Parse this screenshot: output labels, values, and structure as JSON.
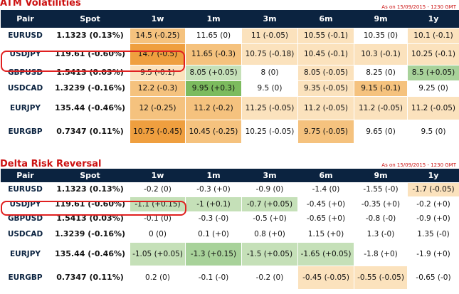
{
  "colors": {
    "header_bg": "#0b2340",
    "title_red": "#cc1111",
    "ring_red": "#e02020",
    "dark_orange": "#ef9f3f",
    "mid_orange": "#f5c27e",
    "light_orange": "#fbe2bd",
    "light_green": "#c5e0b8",
    "mid_green": "#a8d29a",
    "dark_green": "#7cbb5e",
    "white": "#ffffff"
  },
  "atm": {
    "title": "ATM Volatilities",
    "as_of": "As on 15/09/2015 - 1230 GMT",
    "headers": [
      "Pair",
      "Spot",
      "1w",
      "1m",
      "3m",
      "6m",
      "9m",
      "1y"
    ],
    "highlighted_pair": "USDJPY",
    "rows": [
      {
        "pair": "EURUSD",
        "spot": "1.1323 (0.13%)",
        "cells": [
          {
            "text": "14.5 (-0.25)",
            "shade": "mid_orange"
          },
          {
            "text": "11.65 (0)",
            "shade": "white"
          },
          {
            "text": "11 (-0.05)",
            "shade": "light_orange"
          },
          {
            "text": "10.55 (-0.1)",
            "shade": "light_orange"
          },
          {
            "text": "10.35 (0)",
            "shade": "white"
          },
          {
            "text": "10.1 (-0.1)",
            "shade": "light_orange"
          }
        ]
      },
      {
        "pair": "USDJPY",
        "spot": "119.61 (-0.60%)",
        "cells": [
          {
            "text": "14.7 (-0.5)",
            "shade": "dark_orange"
          },
          {
            "text": "11.65 (-0.3)",
            "shade": "mid_orange"
          },
          {
            "text": "10.75 (-0.18)",
            "shade": "light_orange"
          },
          {
            "text": "10.45 (-0.1)",
            "shade": "light_orange"
          },
          {
            "text": "10.3 (-0.1)",
            "shade": "light_orange"
          },
          {
            "text": "10.25 (-0.1)",
            "shade": "light_orange"
          }
        ]
      },
      {
        "pair": "GBPUSD",
        "spot": "1.5413 (0.03%)",
        "cells": [
          {
            "text": "9.5 (-0.1)",
            "shade": "light_orange"
          },
          {
            "text": "8.05 (+0.05)",
            "shade": "light_green"
          },
          {
            "text": "8 (0)",
            "shade": "white"
          },
          {
            "text": "8.05 (-0.05)",
            "shade": "light_orange"
          },
          {
            "text": "8.25 (0)",
            "shade": "white"
          },
          {
            "text": "8.5 (+0.05)",
            "shade": "mid_green"
          }
        ]
      },
      {
        "pair": "USDCAD",
        "spot": "1.3239 (-0.16%)",
        "cells": [
          {
            "text": "12.2 (-0.3)",
            "shade": "mid_orange"
          },
          {
            "text": "9.95 (+0.3)",
            "shade": "dark_green"
          },
          {
            "text": "9.5 (0)",
            "shade": "white"
          },
          {
            "text": "9.35 (-0.05)",
            "shade": "light_orange"
          },
          {
            "text": "9.15 (-0.1)",
            "shade": "mid_orange"
          },
          {
            "text": "9.25 (0)",
            "shade": "white"
          }
        ]
      },
      {
        "pair": "EURJPY",
        "spot": "135.44 (-0.46%)",
        "cells": [
          {
            "text": "12 (-0.25)",
            "shade": "mid_orange"
          },
          {
            "text": "11.2 (-0.2)",
            "shade": "mid_orange"
          },
          {
            "text": "11.25 (-0.05)",
            "shade": "light_orange"
          },
          {
            "text": "11.2 (-0.05)",
            "shade": "light_orange"
          },
          {
            "text": "11.2 (-0.05)",
            "shade": "light_orange"
          },
          {
            "text": "11.2 (-0.05)",
            "shade": "light_orange"
          }
        ]
      },
      {
        "pair": "EURGBP",
        "spot": "0.7347 (0.11%)",
        "cells": [
          {
            "text": "10.75 (-0.45)",
            "shade": "dark_orange"
          },
          {
            "text": "10.45 (-0.25)",
            "shade": "mid_orange"
          },
          {
            "text": "10.25 (-0.05)",
            "shade": "white"
          },
          {
            "text": "9.75 (-0.05)",
            "shade": "mid_orange"
          },
          {
            "text": "9.65 (0)",
            "shade": "white"
          },
          {
            "text": "9.5 (0)",
            "shade": "white"
          }
        ]
      }
    ]
  },
  "rr": {
    "title": "Delta Risk Reversal",
    "as_of": "As on 15/09/2015 - 1230 GMT",
    "headers": [
      "Pair",
      "Spot",
      "1w",
      "1m",
      "3m",
      "6m",
      "9m",
      "1y"
    ],
    "highlighted_pair": "USDJPY",
    "rows": [
      {
        "pair": "EURUSD",
        "spot": "1.1323 (0.13%)",
        "cells": [
          {
            "text": "-0.2 (0)",
            "shade": "white"
          },
          {
            "text": "-0.3 (+0)",
            "shade": "white"
          },
          {
            "text": "-0.9 (0)",
            "shade": "white"
          },
          {
            "text": "-1.4 (0)",
            "shade": "white"
          },
          {
            "text": "-1.55 (-0)",
            "shade": "white"
          },
          {
            "text": "-1.7 (-0.05)",
            "shade": "light_orange"
          }
        ]
      },
      {
        "pair": "USDJPY",
        "spot": "119.61 (-0.60%)",
        "cells": [
          {
            "text": "-1.1 (+0.15)",
            "shade": "light_green"
          },
          {
            "text": "-1 (+0.1)",
            "shade": "light_green"
          },
          {
            "text": "-0.7 (+0.05)",
            "shade": "light_green"
          },
          {
            "text": "-0.45 (+0)",
            "shade": "white"
          },
          {
            "text": "-0.35 (+0)",
            "shade": "white"
          },
          {
            "text": "-0.2 (+0)",
            "shade": "white"
          }
        ]
      },
      {
        "pair": "GBPUSD",
        "spot": "1.5413 (0.03%)",
        "cells": [
          {
            "text": "-0.1 (0)",
            "shade": "white"
          },
          {
            "text": "-0.3 (-0)",
            "shade": "white"
          },
          {
            "text": "-0.5 (+0)",
            "shade": "white"
          },
          {
            "text": "-0.65 (+0)",
            "shade": "white"
          },
          {
            "text": "-0.8 (-0)",
            "shade": "white"
          },
          {
            "text": "-0.9 (+0)",
            "shade": "white"
          }
        ]
      },
      {
        "pair": "USDCAD",
        "spot": "1.3239 (-0.16%)",
        "cells": [
          {
            "text": "0 (0)",
            "shade": "white"
          },
          {
            "text": "0.1 (+0)",
            "shade": "white"
          },
          {
            "text": "0.8 (+0)",
            "shade": "white"
          },
          {
            "text": "1.15 (+0)",
            "shade": "white"
          },
          {
            "text": "1.3 (-0)",
            "shade": "white"
          },
          {
            "text": "1.35 (-0)",
            "shade": "white"
          }
        ]
      },
      {
        "pair": "EURJPY",
        "spot": "135.44 (-0.46%)",
        "cells": [
          {
            "text": "-1.05 (+0.05)",
            "shade": "light_green"
          },
          {
            "text": "-1.3 (+0.15)",
            "shade": "mid_green"
          },
          {
            "text": "-1.5 (+0.05)",
            "shade": "light_green"
          },
          {
            "text": "-1.65 (+0.05)",
            "shade": "light_green"
          },
          {
            "text": "-1.8 (+0)",
            "shade": "white"
          },
          {
            "text": "-1.9 (+0)",
            "shade": "white"
          }
        ]
      },
      {
        "pair": "EURGBP",
        "spot": "0.7347 (0.11%)",
        "cells": [
          {
            "text": "0.2 (0)",
            "shade": "white"
          },
          {
            "text": "-0.1 (-0)",
            "shade": "white"
          },
          {
            "text": "-0.2 (0)",
            "shade": "white"
          },
          {
            "text": "-0.45 (-0.05)",
            "shade": "light_orange"
          },
          {
            "text": "-0.55 (-0.05)",
            "shade": "light_orange"
          },
          {
            "text": "-0.65 (-0)",
            "shade": "white"
          }
        ]
      }
    ]
  }
}
